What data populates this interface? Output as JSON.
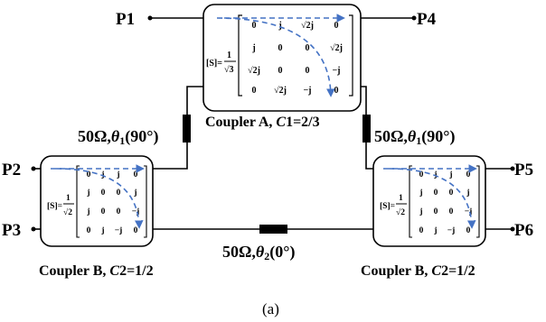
{
  "ports": {
    "p1": "P1",
    "p2": "P2",
    "p3": "P3",
    "p4": "P4",
    "p5": "P5",
    "p6": "P6"
  },
  "coupler_a": {
    "caption_prefix": "Coupler A, ",
    "caption_c": "C",
    "caption_rest": "1=2/3",
    "s_label": "[S]=",
    "frac_num": "1",
    "frac_den": "√3",
    "matrix": [
      [
        "0",
        "j",
        "√2j",
        "0"
      ],
      [
        "j",
        "0",
        "0",
        "√2j"
      ],
      [
        "√2j",
        "0",
        "0",
        "−j"
      ],
      [
        "0",
        "√2j",
        "−j",
        "0"
      ]
    ]
  },
  "coupler_b": {
    "caption_prefix": "Coupler B, ",
    "caption_c": "C",
    "caption_rest": "2=1/2",
    "s_label": "[S]=",
    "frac_num": "1",
    "frac_den": "√2",
    "matrix": [
      [
        "0",
        "j",
        "j",
        "0"
      ],
      [
        "j",
        "0",
        "0",
        "j"
      ],
      [
        "j",
        "0",
        "0",
        "−j"
      ],
      [
        "0",
        "j",
        "−j",
        "0"
      ]
    ]
  },
  "tlines": {
    "left": {
      "z": "50Ω,",
      "theta": "θ",
      "sub": "1",
      "deg": "(90°)"
    },
    "right": {
      "z": "50Ω,",
      "theta": "θ",
      "sub": "1",
      "deg": "(90°)"
    },
    "bottom": {
      "z": "50Ω,",
      "theta": "θ",
      "sub": "2",
      "deg": "(0°)"
    }
  },
  "figure_label": "(a)",
  "colors": {
    "arrow": "#4472c4",
    "line": "#000000"
  }
}
